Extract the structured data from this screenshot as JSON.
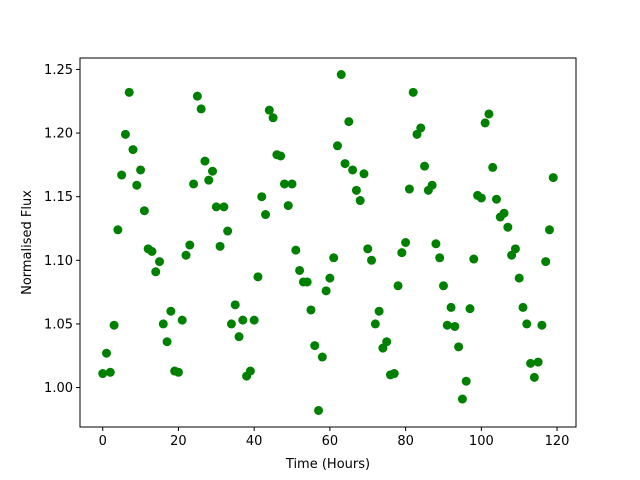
{
  "chart_data": {
    "type": "scatter",
    "xlabel": "Time (Hours)",
    "ylabel": "Normalised Flux",
    "xlim": [
      -6,
      125
    ],
    "ylim": [
      0.969,
      1.259
    ],
    "xticks": [
      0,
      20,
      40,
      60,
      80,
      100,
      120
    ],
    "yticks": [
      1.0,
      1.05,
      1.1,
      1.15,
      1.2,
      1.25
    ],
    "xtick_labels": [
      "0",
      "20",
      "40",
      "60",
      "80",
      "100",
      "120"
    ],
    "ytick_labels": [
      "1.00",
      "1.05",
      "1.10",
      "1.15",
      "1.20",
      "1.25"
    ],
    "grid": false,
    "marker_color": "#008000",
    "series": [
      {
        "x": [
          0,
          1,
          2,
          3,
          4,
          5,
          6,
          7,
          8,
          9,
          10,
          11,
          12,
          13,
          14,
          15,
          16,
          17,
          18,
          19,
          20,
          21,
          22,
          23,
          24,
          25,
          26,
          27,
          28,
          29,
          30,
          31,
          32,
          33,
          34,
          35,
          36,
          37,
          38,
          39,
          40,
          41,
          42,
          43,
          44,
          45,
          46,
          47,
          48,
          49,
          50,
          51,
          52,
          53,
          54,
          55,
          56,
          57,
          58,
          59,
          60,
          61,
          62,
          63,
          64,
          65,
          66,
          67,
          68,
          69,
          70,
          71,
          72,
          73,
          74,
          75,
          76,
          77,
          78,
          79,
          80,
          81,
          82,
          83,
          84,
          85,
          86,
          87,
          88,
          89,
          90,
          91,
          92,
          93,
          94,
          95,
          96,
          97,
          98,
          99,
          100,
          101,
          102,
          103,
          104,
          105,
          106,
          107,
          108,
          109,
          110,
          111,
          112,
          113,
          114,
          115,
          116,
          117,
          118,
          119
        ],
        "y": [
          1.011,
          1.027,
          1.012,
          1.049,
          1.124,
          1.167,
          1.199,
          1.232,
          1.187,
          1.159,
          1.171,
          1.139,
          1.109,
          1.107,
          1.091,
          1.099,
          1.05,
          1.036,
          1.06,
          1.013,
          1.012,
          1.053,
          1.104,
          1.112,
          1.16,
          1.229,
          1.219,
          1.178,
          1.163,
          1.17,
          1.142,
          1.111,
          1.142,
          1.123,
          1.05,
          1.065,
          1.04,
          1.053,
          1.009,
          1.013,
          1.053,
          1.087,
          1.15,
          1.136,
          1.218,
          1.212,
          1.183,
          1.182,
          1.16,
          1.143,
          1.16,
          1.108,
          1.092,
          1.083,
          1.083,
          1.061,
          1.033,
          0.982,
          1.024,
          1.076,
          1.086,
          1.102,
          1.19,
          1.246,
          1.176,
          1.209,
          1.171,
          1.155,
          1.147,
          1.168,
          1.109,
          1.1,
          1.05,
          1.06,
          1.031,
          1.036,
          1.01,
          1.011,
          1.08,
          1.106,
          1.114,
          1.156,
          1.232,
          1.199,
          1.204,
          1.174,
          1.155,
          1.159,
          1.113,
          1.102,
          1.08,
          1.049,
          1.063,
          1.048,
          1.032,
          0.991,
          1.005,
          1.062,
          1.101,
          1.151,
          1.149,
          1.208,
          1.215,
          1.173,
          1.148,
          1.134,
          1.137,
          1.126,
          1.104,
          1.109,
          1.086,
          1.063,
          1.05,
          1.019,
          1.008,
          1.02,
          1.049,
          1.099,
          1.124,
          1.165
        ]
      }
    ]
  }
}
